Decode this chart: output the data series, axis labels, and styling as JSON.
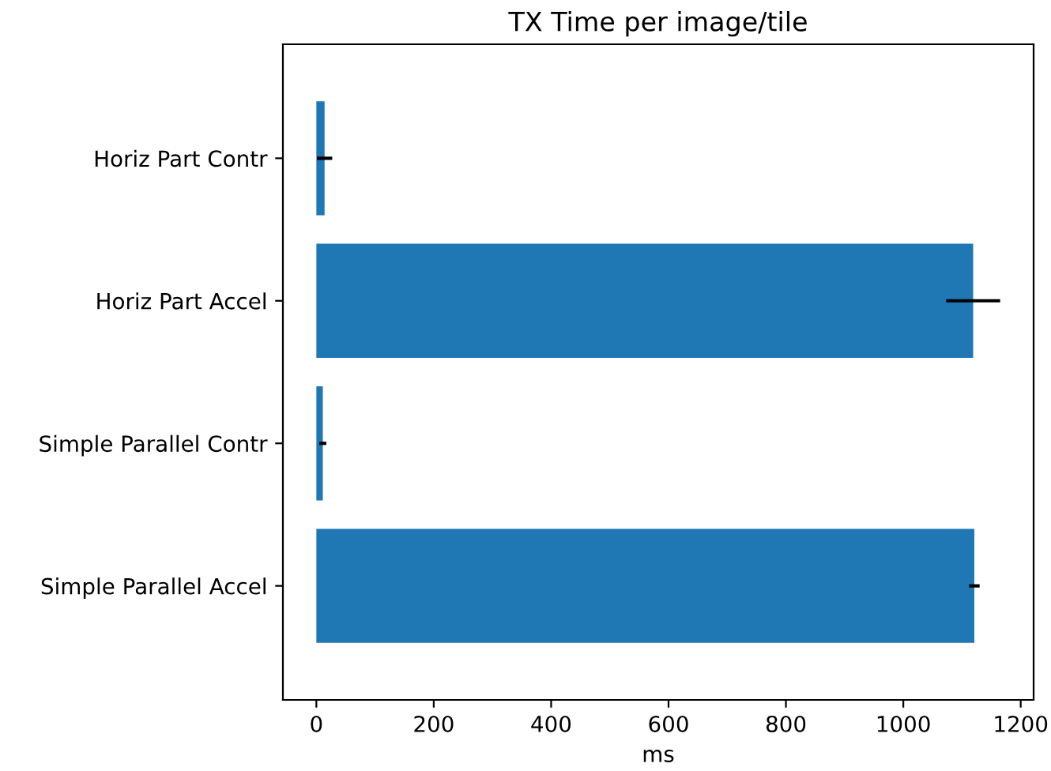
{
  "chart_data": {
    "type": "bar",
    "orientation": "horizontal",
    "title": "TX Time per image/tile",
    "xlabel": "ms",
    "categories": [
      "Horiz Part Contr",
      "Horiz Part Accel",
      "Simple Parallel Contr",
      "Simple Parallel Accel"
    ],
    "values": [
      14,
      1119,
      11,
      1121
    ],
    "errors": [
      13,
      46,
      6,
      9
    ],
    "color": "#1f77b4",
    "xlim": [
      -57,
      1222
    ],
    "xticks": [
      0,
      200,
      400,
      600,
      800,
      1000,
      1200
    ],
    "grid": false
  }
}
